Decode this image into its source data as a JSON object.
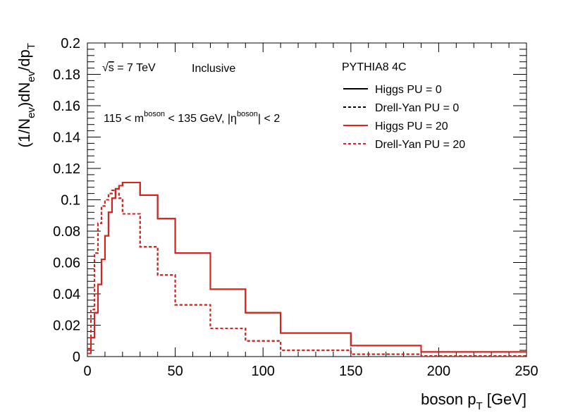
{
  "chart_data": {
    "type": "line",
    "xlabel_main": "boson p",
    "xlabel_sub": "T",
    "xlabel_unit": " [GeV]",
    "ylabel": {
      "p1": "(1/N",
      "s1": "ev",
      "p2": ")dN",
      "s2": "ev",
      "p3": "/dp",
      "s3": "T"
    },
    "xlim": [
      0,
      250
    ],
    "ylim": [
      0,
      0.2
    ],
    "xticks": [
      0,
      50,
      100,
      150,
      200,
      250
    ],
    "xtick_labels": [
      "0",
      "50",
      "100",
      "150",
      "200",
      "250"
    ],
    "yticks": [
      0,
      0.02,
      0.04,
      0.06,
      0.08,
      0.1,
      0.12,
      0.14,
      0.16,
      0.18,
      0.2
    ],
    "ytick_labels": [
      "0",
      "0.02",
      "0.04",
      "0.06",
      "0.08",
      "0.1",
      "0.12",
      "0.14",
      "0.16",
      "0.18",
      "0.2"
    ],
    "grid": false,
    "legend_position": "top-right",
    "legend_title": "PYTHIA8 4C",
    "annotations": {
      "energy_sqrt": "√",
      "energy_s": "s",
      "energy_rest": " = 7 TeV",
      "selection": "Inclusive",
      "cut_a": "115 < m",
      "cut_sup1": "boson",
      "cut_b": " < 135 GeV, |η",
      "cut_sup2": "boson",
      "cut_c": "| < 2"
    },
    "series": [
      {
        "name": "Higgs PU = 0",
        "color": "#000000",
        "dashed": false,
        "bin_edges": [
          0,
          2,
          4,
          6,
          8,
          10,
          12,
          14,
          16,
          18,
          20,
          30,
          40,
          50,
          70,
          90,
          110,
          150,
          190,
          250
        ],
        "values": [
          0.002,
          0.012,
          0.028,
          0.046,
          0.062,
          0.077,
          0.092,
          0.101,
          0.107,
          0.109,
          0.111,
          0.103,
          0.088,
          0.066,
          0.043,
          0.028,
          0.015,
          0.007,
          0.003
        ]
      },
      {
        "name": "Drell-Yan PU = 0",
        "color": "#000000",
        "dashed": true,
        "bin_edges": [
          0,
          2,
          4,
          6,
          8,
          10,
          12,
          14,
          16,
          18,
          20,
          30,
          40,
          50,
          70,
          90,
          110,
          150,
          190,
          250
        ],
        "values": [
          0.005,
          0.03,
          0.066,
          0.085,
          0.096,
          0.1,
          0.104,
          0.106,
          0.104,
          0.101,
          0.091,
          0.07,
          0.052,
          0.033,
          0.018,
          0.01,
          0.004,
          0.0015,
          0.0004
        ]
      },
      {
        "name": "Higgs PU = 20",
        "color": "#e3211b",
        "dashed": false,
        "bin_edges": [
          0,
          2,
          4,
          6,
          8,
          10,
          12,
          14,
          16,
          18,
          20,
          30,
          40,
          50,
          70,
          90,
          110,
          150,
          190,
          250
        ],
        "values": [
          0.002,
          0.012,
          0.028,
          0.046,
          0.062,
          0.077,
          0.092,
          0.101,
          0.107,
          0.109,
          0.111,
          0.103,
          0.088,
          0.066,
          0.043,
          0.028,
          0.015,
          0.007,
          0.003
        ]
      },
      {
        "name": "Drell-Yan PU = 20",
        "color": "#e3211b",
        "dashed": true,
        "bin_edges": [
          0,
          2,
          4,
          6,
          8,
          10,
          12,
          14,
          16,
          18,
          20,
          30,
          40,
          50,
          70,
          90,
          110,
          150,
          190,
          250
        ],
        "values": [
          0.005,
          0.03,
          0.066,
          0.085,
          0.096,
          0.1,
          0.104,
          0.106,
          0.104,
          0.101,
          0.091,
          0.07,
          0.052,
          0.033,
          0.018,
          0.01,
          0.004,
          0.0015,
          0.0004
        ]
      }
    ]
  }
}
